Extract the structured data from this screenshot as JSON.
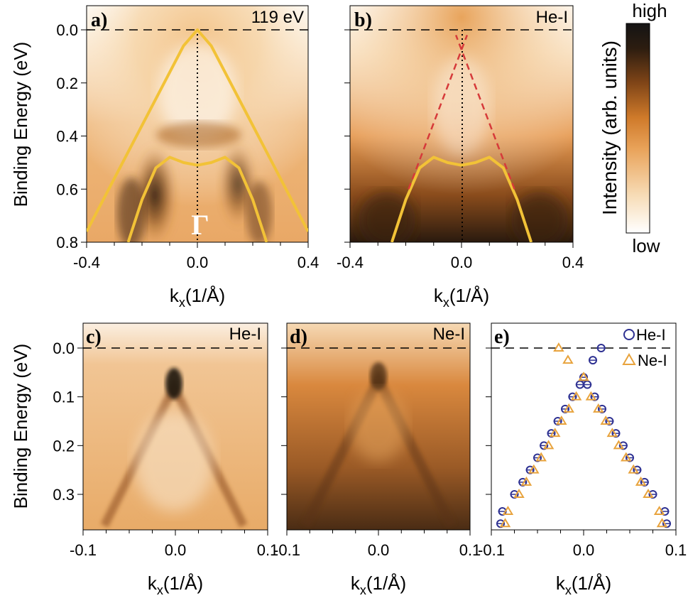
{
  "chart_data": [
    {
      "id": "a",
      "type": "heatmap",
      "panel_label": "a)",
      "source_label": "119 eV",
      "xlabel": "k",
      "xlabel_sub": "x",
      "xlabel_unit": "(1/Å)",
      "ylabel": "Binding Energy (eV)",
      "xlim": [
        -0.4,
        0.4
      ],
      "ylim": [
        0.8,
        -0.1
      ],
      "xticks": [
        "-0.4",
        "0.0",
        "0.4"
      ],
      "yticks": [
        "0.0",
        "0.2",
        "0.4",
        "0.6",
        "0.8"
      ],
      "point_label": "Γ",
      "overlays": {
        "outer_band": {
          "color": "#f2c237",
          "x": [
            -0.4,
            -0.35,
            -0.3,
            -0.25,
            -0.2,
            -0.15,
            -0.1,
            -0.05,
            0.0,
            0.05,
            0.1,
            0.15,
            0.2,
            0.25,
            0.3,
            0.35,
            0.4
          ],
          "y": [
            0.76,
            0.66,
            0.56,
            0.46,
            0.36,
            0.26,
            0.16,
            0.06,
            0.0,
            0.06,
            0.16,
            0.26,
            0.36,
            0.46,
            0.56,
            0.66,
            0.76
          ]
        },
        "inner_band": {
          "color": "#f2c237",
          "x": [
            -0.25,
            -0.2,
            -0.15,
            -0.1,
            -0.05,
            0.0,
            0.05,
            0.1,
            0.15,
            0.2,
            0.25
          ],
          "y": [
            0.8,
            0.64,
            0.52,
            0.48,
            0.5,
            0.51,
            0.5,
            0.48,
            0.52,
            0.64,
            0.8
          ]
        }
      }
    },
    {
      "id": "b",
      "type": "heatmap",
      "panel_label": "b)",
      "source_label": "He-I",
      "xlabel": "k",
      "xlabel_sub": "x",
      "xlabel_unit": "(1/Å)",
      "xlim": [
        -0.4,
        0.4
      ],
      "ylim": [
        0.8,
        -0.1
      ],
      "xticks": [
        "-0.4",
        "0.0",
        "0.4"
      ],
      "overlays": {
        "inner_band": {
          "color": "#f2c237",
          "x": [
            -0.25,
            -0.2,
            -0.15,
            -0.1,
            -0.05,
            0.0,
            0.05,
            0.1,
            0.15,
            0.2,
            0.25
          ],
          "y": [
            0.8,
            0.64,
            0.52,
            0.48,
            0.5,
            0.51,
            0.5,
            0.48,
            0.52,
            0.64,
            0.8
          ]
        },
        "dirac_cone_left": {
          "color": "#d63a3a",
          "x": [
            -0.19,
            0.02
          ],
          "y": [
            0.6,
            0.02
          ]
        },
        "dirac_cone_right": {
          "color": "#d63a3a",
          "x": [
            0.19,
            -0.02
          ],
          "y": [
            0.6,
            0.02
          ]
        }
      }
    },
    {
      "id": "colorbar",
      "type": "colorbar",
      "title": "Intensity (arb. units)",
      "high_label": "high",
      "low_label": "low",
      "colors": [
        "#ffffff",
        "#f7d9b0",
        "#e69a4e",
        "#c9701f",
        "#7a3f10",
        "#2a1a0e",
        "#141414"
      ]
    },
    {
      "id": "c",
      "type": "heatmap",
      "panel_label": "c)",
      "source_label": "He-I",
      "xlabel": "k",
      "xlabel_sub": "x",
      "xlabel_unit": "(1/Å)",
      "ylabel": "Binding Energy (eV)",
      "xlim": [
        -0.1,
        0.1
      ],
      "ylim": [
        0.38,
        -0.05
      ],
      "xticks": [
        "-0.1",
        "0.0",
        "0.1"
      ],
      "yticks": [
        "0.0",
        "0.1",
        "0.2",
        "0.3"
      ]
    },
    {
      "id": "d",
      "type": "heatmap",
      "panel_label": "d)",
      "source_label": "Ne-I",
      "xlabel": "k",
      "xlabel_sub": "x",
      "xlabel_unit": "(1/Å)",
      "xlim": [
        -0.1,
        0.1
      ],
      "ylim": [
        0.38,
        -0.05
      ],
      "xticks": [
        "-0.1",
        "0.0",
        "0.1"
      ]
    },
    {
      "id": "e",
      "type": "scatter",
      "panel_label": "e)",
      "xlabel": "k",
      "xlabel_sub": "x",
      "xlabel_unit": "(1/Å)",
      "xlim": [
        -0.1,
        0.1
      ],
      "ylim": [
        0.38,
        -0.05
      ],
      "xticks": [
        "-0.1",
        "0.0",
        "0.1"
      ],
      "series": [
        {
          "name": "He-I",
          "marker": "circle",
          "color": "#2e3192",
          "x": [
            -0.09,
            -0.088,
            -0.075,
            -0.066,
            -0.058,
            -0.05,
            -0.043,
            -0.035,
            -0.028,
            -0.02,
            -0.012,
            -0.004,
            0.0,
            0.004,
            0.012,
            0.02,
            0.028,
            0.035,
            0.043,
            0.05,
            0.058,
            0.066,
            0.075,
            0.088,
            0.09,
            0.019,
            0.01
          ],
          "y": [
            0.36,
            0.335,
            0.3,
            0.275,
            0.25,
            0.225,
            0.2,
            0.175,
            0.15,
            0.125,
            0.1,
            0.075,
            0.06,
            0.075,
            0.1,
            0.125,
            0.15,
            0.175,
            0.2,
            0.225,
            0.25,
            0.275,
            0.3,
            0.335,
            0.36,
            0.0,
            0.025
          ]
        },
        {
          "name": "Ne-I",
          "marker": "triangle",
          "color": "#e8a33d",
          "x": [
            -0.085,
            -0.082,
            -0.07,
            -0.062,
            -0.054,
            -0.046,
            -0.038,
            -0.031,
            -0.024,
            -0.016,
            -0.008,
            0.0,
            0.008,
            0.016,
            0.024,
            0.031,
            0.038,
            0.046,
            0.054,
            0.062,
            0.07,
            0.082,
            0.085,
            -0.027,
            -0.017
          ],
          "y": [
            0.36,
            0.335,
            0.3,
            0.275,
            0.25,
            0.225,
            0.2,
            0.175,
            0.15,
            0.125,
            0.1,
            0.06,
            0.1,
            0.125,
            0.15,
            0.175,
            0.2,
            0.225,
            0.25,
            0.275,
            0.3,
            0.335,
            0.36,
            0.0,
            0.025
          ]
        }
      ]
    }
  ]
}
